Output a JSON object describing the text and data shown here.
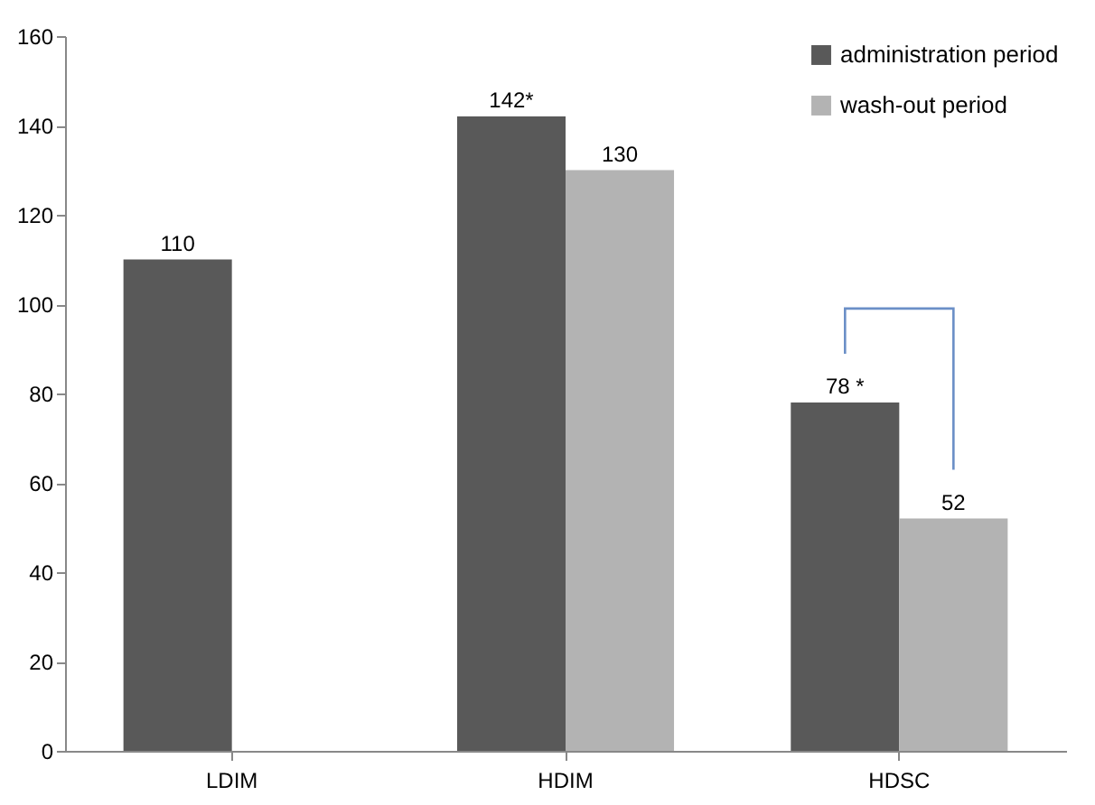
{
  "chart_data": {
    "type": "bar",
    "categories": [
      "LDIM",
      "HDIM",
      "HDSC"
    ],
    "series": [
      {
        "name": "administration period",
        "color": "#595959",
        "values": [
          110,
          142,
          78
        ],
        "value_labels": [
          "110",
          "142*",
          "78 *"
        ]
      },
      {
        "name": "wash-out period",
        "color": "#b3b3b3",
        "values": [
          null,
          130,
          52
        ],
        "value_labels": [
          null,
          "130",
          "52"
        ]
      }
    ],
    "ylim": [
      0,
      160
    ],
    "yticks": [
      0,
      20,
      40,
      60,
      80,
      100,
      120,
      140,
      160
    ],
    "grid": false,
    "legend": "top right"
  }
}
